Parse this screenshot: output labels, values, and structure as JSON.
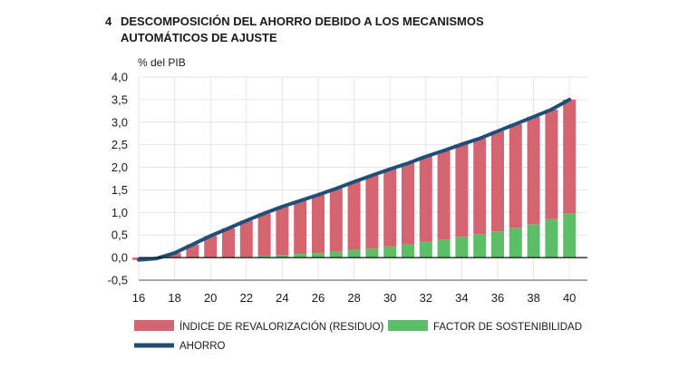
{
  "figure": {
    "number": "4",
    "title_line1": "DESCOMPOSICIÓN DEL AHORRO DEBIDO A LOS MECANISMOS",
    "title_line2": "AUTOMÁTICOS DE AJUSTE"
  },
  "colors": {
    "indice": "#d4646f",
    "factor": "#5cbf68",
    "ahorro": "#1f4e79",
    "grid": "#e6e6e6"
  },
  "chart_data": {
    "type": "bar",
    "stacked": true,
    "unit_label": "% del PIB",
    "x_ticks": [
      16,
      18,
      20,
      22,
      24,
      26,
      28,
      30,
      32,
      34,
      36,
      38,
      40
    ],
    "y_ticks": [
      "4,0",
      "3,5",
      "3,0",
      "2,5",
      "2,0",
      "1,5",
      "1,0",
      "0,5",
      "0,0",
      "-0,5"
    ],
    "xlim": [
      16,
      41
    ],
    "ylim": [
      -0.5,
      4.0
    ],
    "grid": true,
    "legend_position": "bottom",
    "x": [
      16,
      17,
      18,
      19,
      20,
      21,
      22,
      23,
      24,
      25,
      26,
      27,
      28,
      29,
      30,
      31,
      32,
      33,
      34,
      35,
      36,
      37,
      38,
      39,
      40
    ],
    "series": [
      {
        "name": "ÍNDICE DE REVALORIZACIÓN (RESIDUO)",
        "kind": "bar",
        "values": [
          -0.05,
          -0.02,
          0.1,
          0.29,
          0.48,
          0.65,
          0.8,
          0.94,
          1.07,
          1.18,
          1.29,
          1.4,
          1.51,
          1.62,
          1.71,
          1.8,
          1.89,
          1.97,
          2.05,
          2.12,
          2.22,
          2.3,
          2.38,
          2.43,
          2.52
        ]
      },
      {
        "name": "FACTOR DE SOSTENIBILIDAD",
        "kind": "bar",
        "values": [
          0,
          0,
          0,
          0,
          0,
          0,
          0.02,
          0.04,
          0.06,
          0.08,
          0.1,
          0.13,
          0.17,
          0.2,
          0.25,
          0.29,
          0.35,
          0.4,
          0.46,
          0.52,
          0.58,
          0.66,
          0.74,
          0.85,
          0.98
        ]
      },
      {
        "name": "AHORRO",
        "kind": "line",
        "values": [
          -0.05,
          -0.02,
          0.1,
          0.29,
          0.48,
          0.65,
          0.82,
          0.98,
          1.13,
          1.26,
          1.39,
          1.53,
          1.68,
          1.82,
          1.96,
          2.09,
          2.24,
          2.37,
          2.51,
          2.64,
          2.8,
          2.96,
          3.12,
          3.28,
          3.5
        ]
      }
    ]
  }
}
